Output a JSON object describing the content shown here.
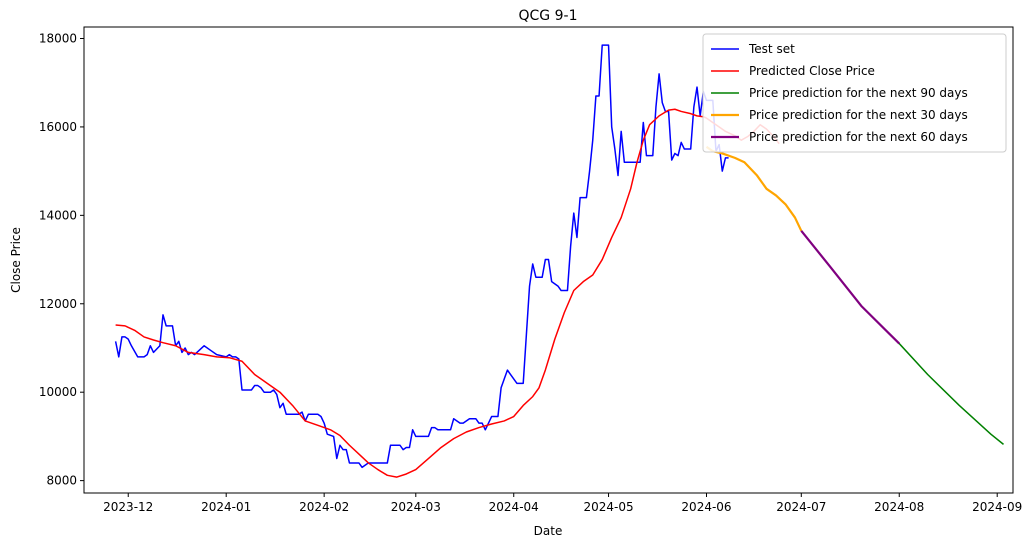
{
  "chart_data": {
    "type": "line",
    "title": "QCG 9-1",
    "xlabel": "Date",
    "ylabel": "Close Price",
    "xlim": [
      "2023-11-17",
      "2024-09-06"
    ],
    "ylim": [
      7720,
      18260
    ],
    "grid": false,
    "legend_position": "top-right",
    "x_ticks": [
      "2023-12-01",
      "2024-01-01",
      "2024-02-01",
      "2024-03-01",
      "2024-04-01",
      "2024-05-01",
      "2024-06-01",
      "2024-07-01",
      "2024-08-01",
      "2024-09-01"
    ],
    "x_tick_labels": [
      "2023-12",
      "2024-01",
      "2024-02",
      "2024-03",
      "2024-04",
      "2024-05",
      "2024-06",
      "2024-07",
      "2024-08",
      "2024-09"
    ],
    "y_ticks": [
      8000,
      10000,
      12000,
      14000,
      16000,
      18000
    ],
    "y_tick_labels": [
      "8000",
      "10000",
      "12000",
      "14000",
      "16000",
      "18000"
    ],
    "series": [
      {
        "name": "Test set",
        "color": "#0000ff",
        "points": [
          [
            "2023-11-27",
            11150
          ],
          [
            "2023-11-28",
            10800
          ],
          [
            "2023-11-29",
            11250
          ],
          [
            "2023-11-30",
            11250
          ],
          [
            "2023-12-01",
            11200
          ],
          [
            "2023-12-02",
            11050
          ],
          [
            "2023-12-04",
            10800
          ],
          [
            "2023-12-05",
            10800
          ],
          [
            "2023-12-06",
            10800
          ],
          [
            "2023-12-07",
            10850
          ],
          [
            "2023-12-08",
            11050
          ],
          [
            "2023-12-09",
            10900
          ],
          [
            "2023-12-11",
            11050
          ],
          [
            "2023-12-12",
            11750
          ],
          [
            "2023-12-13",
            11500
          ],
          [
            "2023-12-14",
            11500
          ],
          [
            "2023-12-15",
            11500
          ],
          [
            "2023-12-16",
            11050
          ],
          [
            "2023-12-17",
            11150
          ],
          [
            "2023-12-18",
            10900
          ],
          [
            "2023-12-19",
            11000
          ],
          [
            "2023-12-20",
            10850
          ],
          [
            "2023-12-21",
            10900
          ],
          [
            "2023-12-22",
            10850
          ],
          [
            "2023-12-25",
            11050
          ],
          [
            "2023-12-27",
            10950
          ],
          [
            "2023-12-29",
            10850
          ],
          [
            "2024-01-01",
            10800
          ],
          [
            "2024-01-02",
            10850
          ],
          [
            "2024-01-03",
            10800
          ],
          [
            "2024-01-04",
            10800
          ],
          [
            "2024-01-05",
            10750
          ],
          [
            "2024-01-06",
            10050
          ],
          [
            "2024-01-08",
            10050
          ],
          [
            "2024-01-09",
            10050
          ],
          [
            "2024-01-10",
            10150
          ],
          [
            "2024-01-11",
            10150
          ],
          [
            "2024-01-12",
            10100
          ],
          [
            "2024-01-13",
            10000
          ],
          [
            "2024-01-15",
            10000
          ],
          [
            "2024-01-16",
            10050
          ],
          [
            "2024-01-17",
            9950
          ],
          [
            "2024-01-18",
            9650
          ],
          [
            "2024-01-19",
            9750
          ],
          [
            "2024-01-20",
            9500
          ],
          [
            "2024-01-22",
            9500
          ],
          [
            "2024-01-23",
            9500
          ],
          [
            "2024-01-24",
            9500
          ],
          [
            "2024-01-25",
            9550
          ],
          [
            "2024-01-26",
            9350
          ],
          [
            "2024-01-27",
            9500
          ],
          [
            "2024-01-29",
            9500
          ],
          [
            "2024-01-30",
            9500
          ],
          [
            "2024-01-31",
            9450
          ],
          [
            "2024-02-01",
            9300
          ],
          [
            "2024-02-02",
            9050
          ],
          [
            "2024-02-04",
            9000
          ],
          [
            "2024-02-05",
            8500
          ],
          [
            "2024-02-06",
            8800
          ],
          [
            "2024-02-07",
            8700
          ],
          [
            "2024-02-08",
            8700
          ],
          [
            "2024-02-09",
            8400
          ],
          [
            "2024-02-10",
            8400
          ],
          [
            "2024-02-12",
            8400
          ],
          [
            "2024-02-13",
            8300
          ],
          [
            "2024-02-14",
            8350
          ],
          [
            "2024-02-15",
            8400
          ],
          [
            "2024-02-16",
            8400
          ],
          [
            "2024-02-19",
            8400
          ],
          [
            "2024-02-21",
            8400
          ],
          [
            "2024-02-22",
            8800
          ],
          [
            "2024-02-23",
            8800
          ],
          [
            "2024-02-25",
            8800
          ],
          [
            "2024-02-26",
            8700
          ],
          [
            "2024-02-27",
            8750
          ],
          [
            "2024-02-28",
            8750
          ],
          [
            "2024-02-29",
            9150
          ],
          [
            "2024-03-01",
            9000
          ],
          [
            "2024-03-04",
            9000
          ],
          [
            "2024-03-05",
            9000
          ],
          [
            "2024-03-06",
            9200
          ],
          [
            "2024-03-07",
            9200
          ],
          [
            "2024-03-08",
            9150
          ],
          [
            "2024-03-11",
            9150
          ],
          [
            "2024-03-12",
            9150
          ],
          [
            "2024-03-13",
            9400
          ],
          [
            "2024-03-15",
            9300
          ],
          [
            "2024-03-16",
            9300
          ],
          [
            "2024-03-18",
            9400
          ],
          [
            "2024-03-20",
            9400
          ],
          [
            "2024-03-21",
            9300
          ],
          [
            "2024-03-22",
            9300
          ],
          [
            "2024-03-23",
            9150
          ],
          [
            "2024-03-25",
            9450
          ],
          [
            "2024-03-26",
            9450
          ],
          [
            "2024-03-27",
            9450
          ],
          [
            "2024-03-28",
            10100
          ],
          [
            "2024-03-29",
            10300
          ],
          [
            "2024-03-30",
            10500
          ],
          [
            "2024-03-31",
            10400
          ],
          [
            "2024-04-02",
            10200
          ],
          [
            "2024-04-04",
            10200
          ],
          [
            "2024-04-05",
            11300
          ],
          [
            "2024-04-06",
            12400
          ],
          [
            "2024-04-07",
            12900
          ],
          [
            "2024-04-08",
            12600
          ],
          [
            "2024-04-09",
            12600
          ],
          [
            "2024-04-10",
            12600
          ],
          [
            "2024-04-11",
            13000
          ],
          [
            "2024-04-12",
            13000
          ],
          [
            "2024-04-13",
            12500
          ],
          [
            "2024-04-15",
            12400
          ],
          [
            "2024-04-16",
            12300
          ],
          [
            "2024-04-17",
            12300
          ],
          [
            "2024-04-18",
            12300
          ],
          [
            "2024-04-19",
            13300
          ],
          [
            "2024-04-20",
            14050
          ],
          [
            "2024-04-21",
            13500
          ],
          [
            "2024-04-22",
            14400
          ],
          [
            "2024-04-24",
            14400
          ],
          [
            "2024-04-25",
            15000
          ],
          [
            "2024-04-26",
            15700
          ],
          [
            "2024-04-27",
            16700
          ],
          [
            "2024-04-28",
            16700
          ],
          [
            "2024-04-29",
            17850
          ],
          [
            "2024-05-01",
            17850
          ],
          [
            "2024-05-02",
            16000
          ],
          [
            "2024-05-03",
            15500
          ],
          [
            "2024-05-04",
            14900
          ],
          [
            "2024-05-05",
            15900
          ],
          [
            "2024-05-06",
            15200
          ],
          [
            "2024-05-08",
            15200
          ],
          [
            "2024-05-10",
            15200
          ],
          [
            "2024-05-11",
            15200
          ],
          [
            "2024-05-12",
            16100
          ],
          [
            "2024-05-13",
            15350
          ],
          [
            "2024-05-15",
            15350
          ],
          [
            "2024-05-16",
            16450
          ],
          [
            "2024-05-17",
            17200
          ],
          [
            "2024-05-18",
            16550
          ],
          [
            "2024-05-19",
            16350
          ],
          [
            "2024-05-20",
            16350
          ],
          [
            "2024-05-21",
            15250
          ],
          [
            "2024-05-22",
            15400
          ],
          [
            "2024-05-23",
            15350
          ],
          [
            "2024-05-24",
            15650
          ],
          [
            "2024-05-25",
            15500
          ],
          [
            "2024-05-27",
            15500
          ],
          [
            "2024-05-28",
            16450
          ],
          [
            "2024-05-29",
            16900
          ],
          [
            "2024-05-30",
            16250
          ],
          [
            "2024-05-31",
            16800
          ],
          [
            "2024-06-01",
            16600
          ],
          [
            "2024-06-03",
            16600
          ],
          [
            "2024-06-04",
            15450
          ],
          [
            "2024-06-05",
            15600
          ],
          [
            "2024-06-06",
            15000
          ],
          [
            "2024-06-07",
            15300
          ],
          [
            "2024-06-08",
            15300
          ]
        ]
      },
      {
        "name": "Predicted Close Price",
        "color": "#ff0000",
        "points": [
          [
            "2023-11-27",
            11520
          ],
          [
            "2023-11-30",
            11500
          ],
          [
            "2023-12-03",
            11400
          ],
          [
            "2023-12-06",
            11250
          ],
          [
            "2023-12-09",
            11180
          ],
          [
            "2023-12-12",
            11120
          ],
          [
            "2023-12-16",
            11050
          ],
          [
            "2023-12-20",
            10900
          ],
          [
            "2023-12-25",
            10850
          ],
          [
            "2023-12-29",
            10800
          ],
          [
            "2024-01-02",
            10780
          ],
          [
            "2024-01-06",
            10700
          ],
          [
            "2024-01-10",
            10400
          ],
          [
            "2024-01-14",
            10200
          ],
          [
            "2024-01-18",
            10000
          ],
          [
            "2024-01-22",
            9700
          ],
          [
            "2024-01-26",
            9350
          ],
          [
            "2024-01-30",
            9250
          ],
          [
            "2024-02-03",
            9150
          ],
          [
            "2024-02-06",
            9020
          ],
          [
            "2024-02-09",
            8800
          ],
          [
            "2024-02-12",
            8600
          ],
          [
            "2024-02-15",
            8400
          ],
          [
            "2024-02-18",
            8250
          ],
          [
            "2024-02-21",
            8120
          ],
          [
            "2024-02-24",
            8080
          ],
          [
            "2024-02-27",
            8150
          ],
          [
            "2024-03-01",
            8250
          ],
          [
            "2024-03-05",
            8500
          ],
          [
            "2024-03-09",
            8750
          ],
          [
            "2024-03-13",
            8950
          ],
          [
            "2024-03-17",
            9100
          ],
          [
            "2024-03-21",
            9200
          ],
          [
            "2024-03-25",
            9280
          ],
          [
            "2024-03-29",
            9350
          ],
          [
            "2024-04-01",
            9450
          ],
          [
            "2024-04-04",
            9700
          ],
          [
            "2024-04-07",
            9900
          ],
          [
            "2024-04-09",
            10100
          ],
          [
            "2024-04-11",
            10500
          ],
          [
            "2024-04-14",
            11200
          ],
          [
            "2024-04-17",
            11800
          ],
          [
            "2024-04-20",
            12300
          ],
          [
            "2024-04-23",
            12500
          ],
          [
            "2024-04-26",
            12650
          ],
          [
            "2024-04-29",
            13000
          ],
          [
            "2024-05-02",
            13500
          ],
          [
            "2024-05-05",
            13950
          ],
          [
            "2024-05-08",
            14600
          ],
          [
            "2024-05-10",
            15200
          ],
          [
            "2024-05-12",
            15700
          ],
          [
            "2024-05-14",
            16050
          ],
          [
            "2024-05-17",
            16250
          ],
          [
            "2024-05-20",
            16380
          ],
          [
            "2024-05-22",
            16400
          ],
          [
            "2024-05-24",
            16350
          ],
          [
            "2024-05-27",
            16300
          ],
          [
            "2024-05-29",
            16250
          ],
          [
            "2024-05-31",
            16230
          ],
          [
            "2024-06-01",
            16200
          ],
          [
            "2024-06-04",
            16050
          ],
          [
            "2024-06-07",
            15900
          ],
          [
            "2024-06-10",
            15800
          ],
          [
            "2024-06-12",
            15700
          ],
          [
            "2024-06-14",
            15780
          ],
          [
            "2024-06-16",
            15900
          ],
          [
            "2024-06-18",
            16050
          ],
          [
            "2024-06-20",
            15950
          ],
          [
            "2024-06-22",
            15800
          ],
          [
            "2024-06-24",
            15620
          ]
        ]
      },
      {
        "name": "Price prediction for the next 90 days",
        "color": "#008000",
        "points": [
          [
            "2024-07-01",
            13650
          ],
          [
            "2024-07-10",
            12850
          ],
          [
            "2024-07-20",
            11950
          ],
          [
            "2024-08-01",
            11100
          ],
          [
            "2024-08-10",
            10400
          ],
          [
            "2024-08-20",
            9700
          ],
          [
            "2024-08-30",
            9050
          ],
          [
            "2024-09-03",
            8820
          ]
        ]
      },
      {
        "name": "Price prediction for the next 30 days",
        "color": "#ffa500",
        "points": [
          [
            "2024-06-01",
            15550
          ],
          [
            "2024-06-03",
            15450
          ],
          [
            "2024-06-06",
            15400
          ],
          [
            "2024-06-10",
            15300
          ],
          [
            "2024-06-13",
            15200
          ],
          [
            "2024-06-17",
            14900
          ],
          [
            "2024-06-20",
            14600
          ],
          [
            "2024-06-23",
            14450
          ],
          [
            "2024-06-26",
            14250
          ],
          [
            "2024-06-29",
            13950
          ],
          [
            "2024-07-01",
            13650
          ]
        ]
      },
      {
        "name": "Price prediction for the next 60 days",
        "color": "#800080",
        "points": [
          [
            "2024-07-01",
            13650
          ],
          [
            "2024-07-10",
            12850
          ],
          [
            "2024-07-20",
            11950
          ],
          [
            "2024-08-01",
            11100
          ]
        ]
      }
    ]
  }
}
